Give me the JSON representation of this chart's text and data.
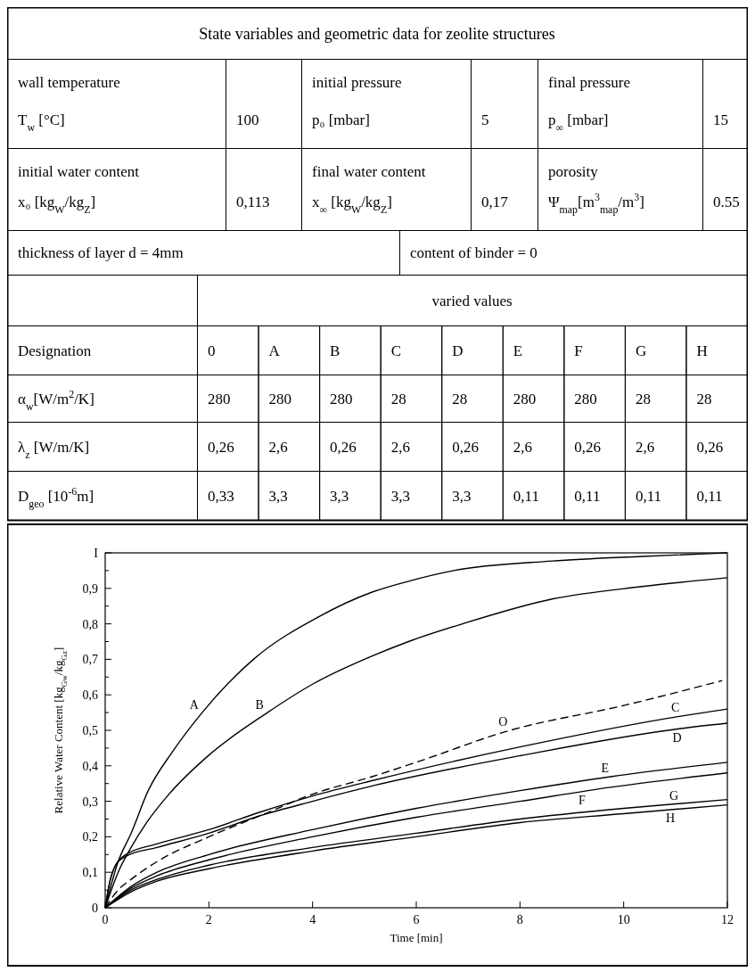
{
  "chart_data": [
    {
      "type": "other",
      "title": "State variables and geometric data for zeolite structures",
      "annotations": [
        "wall temperature",
        "T$_{w}$ [°C]",
        "100",
        "initial pressure",
        "p₀ [mbar]",
        "5",
        "final pressure",
        "p$_{∞}$ [mbar]",
        "15",
        "initial water content",
        "x₀ [kg$_{W}$/kg$_{Z}$]",
        "0,113",
        "final water content",
        "x$_{∞}$ [kg$_{W}$/kg$_{Z}$]",
        "0,17",
        "porosity",
        "Ψ$_{map}$[m$^{3}$$_{map}$/m$^{3}$]",
        "0.55",
        "thickness of layer d = 4mm",
        "content of binder = 0",
        "varied values",
        "Designation",
        "0",
        "A",
        "B",
        "C",
        "D",
        "E",
        "F",
        "G",
        "H",
        "α$_{w}$[W/m$^{2}$/K]",
        "280",
        "280",
        "280",
        "28",
        "28",
        "280",
        "280",
        "28",
        "28",
        "λ$_{z}$ [W/m/K]",
        "0,26",
        "2,6",
        "0,26",
        "2,6",
        "0,26",
        "2,6",
        "0,26",
        "2,6",
        "0,26",
        "D$_{geo}$ [10$^{-6}$m]",
        "0,33",
        "3,3",
        "3,3",
        "3,3",
        "3,3",
        "0,11",
        "0,11",
        "0,11",
        "0,11"
      ]
    },
    {
      "type": "line",
      "xlabel": "Time [min]",
      "ylabel": "Relative Water Content [kg$_{Gw}$/kg$_{Gz}$]",
      "xlim": [
        0,
        12
      ],
      "ylim": [
        0,
        1
      ],
      "xticks": [
        0,
        2,
        4,
        6,
        8,
        10,
        12
      ],
      "yticks": [
        0,
        {
          "value": 0.05,
          "label": null
        },
        {
          "value": 0.1,
          "label": "0,1"
        },
        {
          "value": 0.15,
          "label": null
        },
        {
          "value": 0.2,
          "label": "0,2"
        },
        {
          "value": 0.25,
          "label": null
        },
        {
          "value": 0.3,
          "label": "0,3"
        },
        {
          "value": 0.35,
          "label": null
        },
        {
          "value": 0.4,
          "label": "0,4"
        },
        {
          "value": 0.45,
          "label": null
        },
        {
          "value": 0.5,
          "label": "0,5"
        },
        {
          "value": 0.55,
          "label": null
        },
        {
          "value": 0.6,
          "label": "0,6"
        },
        {
          "value": 0.65,
          "label": null
        },
        {
          "value": 0.7,
          "label": "0,7"
        },
        {
          "value": 0.75,
          "label": null
        },
        {
          "value": 0.8,
          "label": "0,8"
        },
        {
          "value": 0.85,
          "label": null
        },
        {
          "value": 0.9,
          "label": "0,9"
        },
        {
          "value": 0.95,
          "label": null
        },
        {
          "value": 1,
          "label": "I"
        }
      ],
      "grid": false,
      "marker": "none",
      "series": [
        {
          "name": "A",
          "color": "#000000",
          "x": [
            0,
            0.25,
            0.5,
            0.83,
            1.3,
            1.87,
            2.86,
            4.12,
            5.16,
            5.85,
            6.72,
            8.62,
            10.35,
            12
          ],
          "values": [
            0,
            0.13,
            0.21,
            0.33,
            0.44,
            0.55,
            0.7,
            0.82,
            0.89,
            0.92,
            0.95,
            0.977,
            0.99,
            1
          ]
        },
        {
          "name": "B",
          "color": "#000000",
          "x": [
            0,
            0.25,
            0.5,
            0.8,
            1.23,
            2,
            3.13,
            4,
            5.16,
            5.85,
            6.89,
            8.62,
            10.35,
            12
          ],
          "values": [
            0,
            0.1,
            0.17,
            0.24,
            0.32,
            0.43,
            0.55,
            0.63,
            0.71,
            0.75,
            0.8,
            0.87,
            0.905,
            0.93
          ]
        },
        {
          "name": "O",
          "color": "#000000",
          "line_style": "dashed",
          "x": [
            0,
            0.25,
            0.5,
            1,
            2,
            3,
            4,
            5.16,
            6,
            7.81,
            10,
            11.9
          ],
          "values": [
            0,
            0.05,
            0.08,
            0.13,
            0.2,
            0.26,
            0.32,
            0.37,
            0.41,
            0.5,
            0.57,
            0.64
          ]
        },
        {
          "name": "C",
          "color": "#000000",
          "x": [
            0,
            0.1,
            0.2,
            0.4,
            1,
            2,
            3,
            4,
            5.2,
            8.06,
            11.1,
            12
          ],
          "values": [
            0,
            0.08,
            0.12,
            0.15,
            0.18,
            0.22,
            0.27,
            0.315,
            0.36,
            0.455,
            0.54,
            0.56
          ]
        },
        {
          "name": "D",
          "color": "#000000",
          "x": [
            0,
            0.1,
            0.2,
            0.4,
            1,
            2,
            3,
            4,
            5.2,
            8.06,
            11.1,
            12
          ],
          "values": [
            0,
            0.08,
            0.12,
            0.145,
            0.17,
            0.21,
            0.26,
            0.3,
            0.345,
            0.43,
            0.505,
            0.52
          ]
        },
        {
          "name": "E",
          "color": "#000000",
          "x": [
            0,
            0.5,
            1,
            2,
            4,
            6,
            8,
            9.78,
            12
          ],
          "values": [
            0,
            0.06,
            0.1,
            0.15,
            0.22,
            0.28,
            0.33,
            0.37,
            0.41
          ]
        },
        {
          "name": "F",
          "color": "#000000",
          "x": [
            0,
            0.5,
            1,
            2,
            4,
            6,
            8,
            9.78,
            12
          ],
          "values": [
            0,
            0.055,
            0.09,
            0.135,
            0.2,
            0.255,
            0.3,
            0.34,
            0.38
          ]
        },
        {
          "name": "G",
          "color": "#000000",
          "x": [
            0,
            0.5,
            1,
            2,
            4,
            6,
            8,
            10,
            12
          ],
          "values": [
            0,
            0.05,
            0.08,
            0.12,
            0.17,
            0.21,
            0.25,
            0.28,
            0.305
          ]
        },
        {
          "name": "H",
          "color": "#000000",
          "x": [
            0,
            0.5,
            1,
            2,
            4,
            6,
            8,
            10,
            12
          ],
          "values": [
            0,
            0.045,
            0.075,
            0.11,
            0.16,
            0.2,
            0.24,
            0.265,
            0.29
          ]
        }
      ]
    }
  ]
}
